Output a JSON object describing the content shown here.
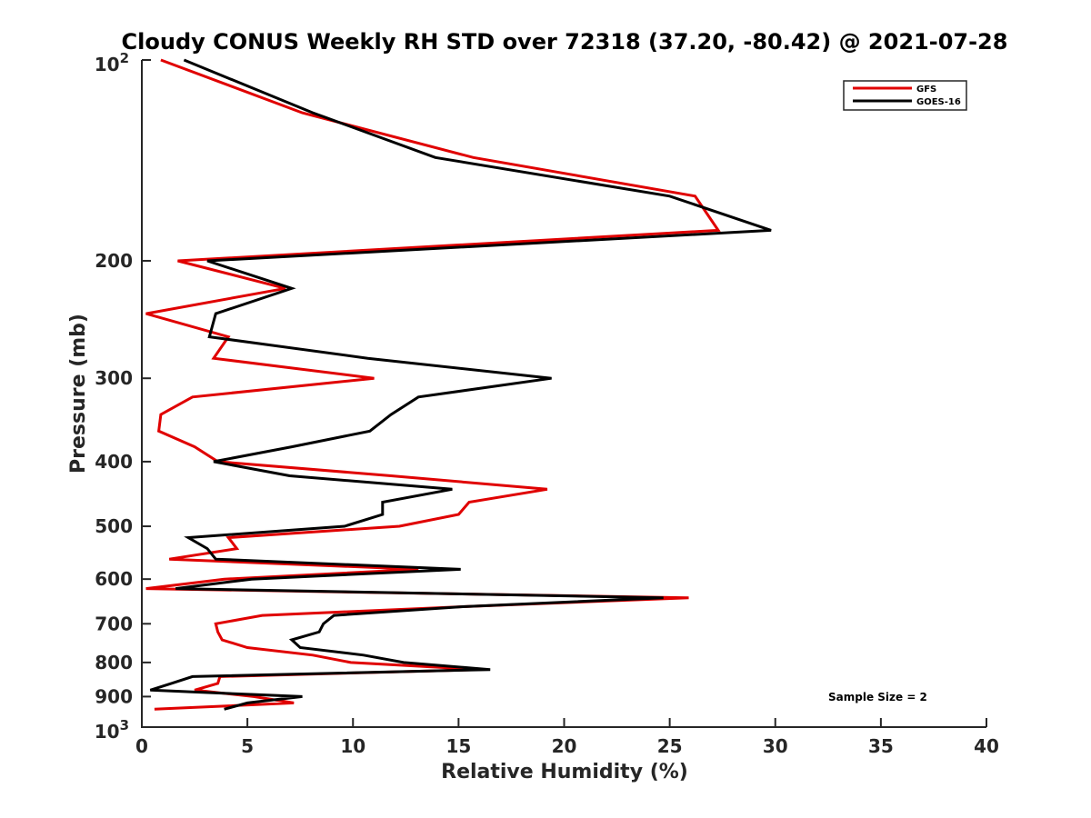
{
  "chart_data": {
    "type": "line",
    "title": "Cloudy CONUS Weekly RH STD over 72318 (37.20, -80.42) @ 2021-07-28",
    "xlabel": "Relative Humidity (%)",
    "ylabel": "Pressure (mb)",
    "xlim": [
      0,
      40
    ],
    "ylim": [
      100,
      1000
    ],
    "yscale": "log",
    "yreversed": true,
    "grid": false,
    "legend_position": "top-right",
    "xticks": [
      0,
      5,
      10,
      15,
      20,
      25,
      30,
      35,
      40
    ],
    "xtick_labels": [
      "0",
      "5",
      "10",
      "15",
      "20",
      "25",
      "30",
      "35",
      "40"
    ],
    "yticks": [
      100,
      200,
      300,
      400,
      500,
      600,
      700,
      800,
      900,
      1000
    ],
    "ytick_labels": [
      {
        "base": "10",
        "exp": "2"
      },
      {
        "text": "200"
      },
      {
        "text": "300"
      },
      {
        "text": "400"
      },
      {
        "text": "500"
      },
      {
        "text": "600"
      },
      {
        "text": "700"
      },
      {
        "text": "800"
      },
      {
        "text": "900"
      },
      {
        "base": "10",
        "exp": "3"
      }
    ],
    "annotation": "Sample Size = 2",
    "series": [
      {
        "name": "GFS",
        "color": "#e00000",
        "pressure": [
          100,
          120,
          140,
          160,
          180,
          200,
          220,
          240,
          260,
          280,
          300,
          320,
          340,
          360,
          380,
          400,
          420,
          440,
          460,
          480,
          500,
          520,
          540,
          560,
          580,
          600,
          620,
          640,
          660,
          680,
          700,
          720,
          740,
          760,
          780,
          800,
          820,
          840,
          860,
          880,
          900,
          920,
          940
        ],
        "values": [
          0.9,
          7.6,
          15.7,
          26.2,
          27.3,
          1.7,
          6.8,
          0.2,
          4.1,
          3.4,
          11.0,
          2.4,
          0.9,
          0.8,
          2.5,
          3.6,
          11.8,
          19.2,
          15.5,
          15.0,
          12.2,
          4.1,
          4.5,
          1.3,
          13.1,
          3.9,
          0.2,
          25.9,
          15.2,
          5.7,
          3.5,
          3.6,
          3.8,
          5.0,
          8.1,
          9.9,
          16.0,
          3.7,
          3.6,
          2.5,
          5.3,
          7.2,
          0.6
        ]
      },
      {
        "name": "GOES-16",
        "color": "#000000",
        "pressure": [
          100,
          120,
          140,
          160,
          180,
          200,
          220,
          240,
          260,
          280,
          300,
          320,
          340,
          360,
          380,
          400,
          420,
          440,
          460,
          480,
          500,
          520,
          540,
          560,
          580,
          600,
          620,
          640,
          660,
          680,
          700,
          720,
          740,
          760,
          780,
          800,
          820,
          840,
          860,
          880,
          900,
          920,
          940
        ],
        "values": [
          2.0,
          8.1,
          13.9,
          25.0,
          29.8,
          3.1,
          7.1,
          3.5,
          3.2,
          10.7,
          19.4,
          13.1,
          11.8,
          10.8,
          7.1,
          3.4,
          7.0,
          14.7,
          11.4,
          11.4,
          9.6,
          2.2,
          3.1,
          3.5,
          15.1,
          5.2,
          1.6,
          24.7,
          15.2,
          9.1,
          8.6,
          8.4,
          7.1,
          7.5,
          10.5,
          12.4,
          16.5,
          2.4,
          1.4,
          0.4,
          7.6,
          5.0,
          3.9
        ]
      }
    ]
  }
}
